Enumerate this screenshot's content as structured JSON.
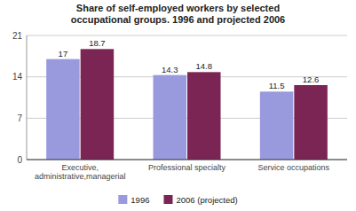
{
  "chart_data": {
    "type": "bar",
    "title": "Share of self-employed workers by selected\noccupational groups. 1996 and projected 2006",
    "categories": [
      "Executive,\nadministrative,managerial",
      "Professional specialty",
      "Service occupations"
    ],
    "series": [
      {
        "name": "1996",
        "color": "#9999dd",
        "values": [
          17,
          14.3,
          11.5
        ]
      },
      {
        "name": "2006 (projected)",
        "color": "#7b2555",
        "values": [
          18.7,
          14.8,
          12.6
        ]
      }
    ],
    "ylim": [
      0,
      21
    ],
    "yticks": [
      0,
      7,
      14,
      21
    ],
    "grid": true,
    "legend": "bottom",
    "data_labels": true
  }
}
